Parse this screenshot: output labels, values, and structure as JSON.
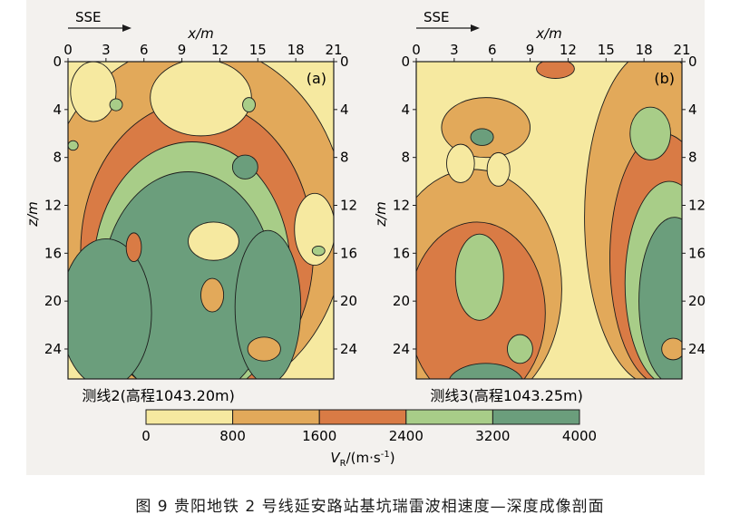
{
  "caption": "图 9 贵阳地铁 2 号线延安路站基坑瑞雷波相速度—深度成像剖面",
  "colors": {
    "bands": [
      "#f6e9a0",
      "#e2a95a",
      "#d97b45",
      "#a8cd88",
      "#6b9e7c"
    ],
    "line": "#1c1c1c",
    "panel_bg": "#f3f1ee"
  },
  "chart_data": [
    {
      "type": "heatmap",
      "panel_label": "(a)",
      "line_label": "测线2(高程1043.20m)",
      "direction_label": "SSE",
      "xlabel": "x/m",
      "ylabel": "z/m",
      "x_ticks": [
        "0",
        "3",
        "6",
        "9",
        "12",
        "15",
        "18",
        "21"
      ],
      "y_ticks": [
        "0",
        "4",
        "8",
        "12",
        "16",
        "20",
        "24"
      ],
      "xlim": [
        0,
        21
      ],
      "ylim": [
        0,
        26.5
      ],
      "grid": false,
      "bodies": [
        {
          "band": 1,
          "cx": 10.0,
          "cy": 13.5,
          "rx": 12.0,
          "ry": 15.0
        },
        {
          "band": 2,
          "cx": 10.2,
          "cy": 15.8,
          "rx": 9.2,
          "ry": 12.5
        },
        {
          "band": 3,
          "cx": 9.8,
          "cy": 17.5,
          "rx": 7.8,
          "ry": 10.8
        },
        {
          "band": 4,
          "cx": 9.5,
          "cy": 18.8,
          "rx": 6.8,
          "ry": 9.6
        },
        {
          "band": 4,
          "cx": 3.0,
          "cy": 21.0,
          "rx": 3.6,
          "ry": 6.2
        },
        {
          "band": 4,
          "cx": 15.8,
          "cy": 20.5,
          "rx": 2.6,
          "ry": 6.4
        },
        {
          "band": 0,
          "cx": 10.5,
          "cy": 3.0,
          "rx": 4.0,
          "ry": 3.2
        },
        {
          "band": 0,
          "cx": 2.0,
          "cy": 2.5,
          "rx": 1.8,
          "ry": 2.5
        },
        {
          "band": 0,
          "cx": 19.5,
          "cy": 14.0,
          "rx": 1.6,
          "ry": 3.0
        },
        {
          "band": 0,
          "cx": 11.5,
          "cy": 15.0,
          "rx": 2.0,
          "ry": 1.6
        },
        {
          "band": 2,
          "cx": 5.2,
          "cy": 15.5,
          "rx": 0.6,
          "ry": 1.2
        },
        {
          "band": 4,
          "cx": 14.0,
          "cy": 8.8,
          "rx": 1.0,
          "ry": 1.0
        },
        {
          "band": 3,
          "cx": 3.8,
          "cy": 3.6,
          "rx": 0.5,
          "ry": 0.5
        },
        {
          "band": 3,
          "cx": 14.3,
          "cy": 3.6,
          "rx": 0.5,
          "ry": 0.6
        },
        {
          "band": 3,
          "cx": 0.4,
          "cy": 7.0,
          "rx": 0.4,
          "ry": 0.4
        },
        {
          "band": 3,
          "cx": 19.8,
          "cy": 15.8,
          "rx": 0.5,
          "ry": 0.4
        },
        {
          "band": 1,
          "cx": 11.4,
          "cy": 19.5,
          "rx": 0.9,
          "ry": 1.4
        },
        {
          "band": 1,
          "cx": 15.5,
          "cy": 24.0,
          "rx": 1.3,
          "ry": 1.0
        }
      ]
    },
    {
      "type": "heatmap",
      "panel_label": "(b)",
      "line_label": "测线3(高程1043.25m)",
      "direction_label": "SSE",
      "xlabel": "x/m",
      "ylabel": "z/m",
      "x_ticks": [
        "0",
        "3",
        "6",
        "9",
        "12",
        "15",
        "18",
        "21"
      ],
      "y_ticks": [
        "0",
        "4",
        "8",
        "12",
        "16",
        "20",
        "24"
      ],
      "xlim": [
        0,
        21
      ],
      "ylim": [
        0,
        26.5
      ],
      "grid": false,
      "bodies": [
        {
          "band": 1,
          "cx": 4.5,
          "cy": 19.0,
          "rx": 7.0,
          "ry": 10.0
        },
        {
          "band": 2,
          "cx": 4.8,
          "cy": 21.0,
          "rx": 5.4,
          "ry": 7.6
        },
        {
          "band": 3,
          "cx": 5.0,
          "cy": 18.0,
          "rx": 1.9,
          "ry": 3.6
        },
        {
          "band": 3,
          "cx": 8.2,
          "cy": 24.0,
          "rx": 1.0,
          "ry": 1.2
        },
        {
          "band": 4,
          "cx": 5.5,
          "cy": 27.0,
          "rx": 3.0,
          "ry": 1.8
        },
        {
          "band": 1,
          "cx": 18.8,
          "cy": 13.0,
          "rx": 5.5,
          "ry": 14.0
        },
        {
          "band": 2,
          "cx": 19.5,
          "cy": 16.5,
          "rx": 4.2,
          "ry": 10.5
        },
        {
          "band": 3,
          "cx": 20.0,
          "cy": 18.5,
          "rx": 3.5,
          "ry": 8.5
        },
        {
          "band": 4,
          "cx": 20.4,
          "cy": 20.0,
          "rx": 2.8,
          "ry": 7.0
        },
        {
          "band": 3,
          "cx": 18.5,
          "cy": 6.0,
          "rx": 1.6,
          "ry": 2.2
        },
        {
          "band": 1,
          "cx": 5.5,
          "cy": 5.5,
          "rx": 3.5,
          "ry": 2.5
        },
        {
          "band": 4,
          "cx": 5.2,
          "cy": 6.3,
          "rx": 0.9,
          "ry": 0.7
        },
        {
          "band": 0,
          "cx": 3.5,
          "cy": 8.5,
          "rx": 1.1,
          "ry": 1.6
        },
        {
          "band": 0,
          "cx": 6.5,
          "cy": 9.0,
          "rx": 0.9,
          "ry": 1.4
        },
        {
          "band": 2,
          "cx": 11.0,
          "cy": 0.6,
          "rx": 1.5,
          "ry": 0.8
        },
        {
          "band": 1,
          "cx": 20.3,
          "cy": 24.0,
          "rx": 0.9,
          "ry": 0.9
        }
      ]
    }
  ],
  "colorbar": {
    "ticks": [
      "0",
      "800",
      "1600",
      "2400",
      "3200",
      "4000"
    ],
    "label_main": "V",
    "label_sub": "R",
    "label_unit": "/(m·s",
    "label_exp": "-1",
    "label_close": ")"
  }
}
